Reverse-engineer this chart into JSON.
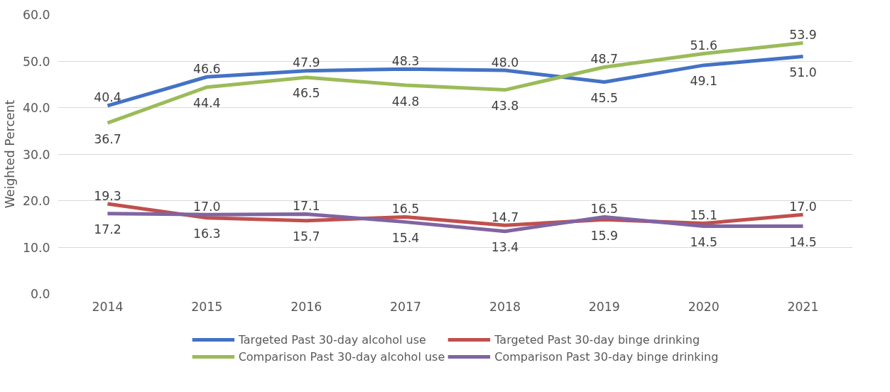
{
  "chart_data": {
    "type": "line",
    "ylabel": "Weighted Percent",
    "categories": [
      "2014",
      "2015",
      "2016",
      "2017",
      "2018",
      "2019",
      "2020",
      "2021"
    ],
    "series": [
      {
        "name": "Targeted Past 30-day alcohol use",
        "color": "#4472c4",
        "values": [
          40.4,
          46.6,
          47.9,
          48.3,
          48.0,
          45.5,
          49.1,
          51.0
        ],
        "value_labels": [
          "40.4",
          "46.6",
          "47.9",
          "48.3",
          "48.0",
          "45.5",
          "49.1",
          "51.0"
        ]
      },
      {
        "name": "Targeted Past 30-day binge drinking",
        "color": "#c0504d",
        "values": [
          19.3,
          16.3,
          15.7,
          16.5,
          14.7,
          15.9,
          15.1,
          17.0
        ],
        "value_labels": [
          "19.3",
          "16.3",
          "15.7",
          "16.5",
          "14.7",
          "15.9",
          "15.1",
          "17.0"
        ]
      },
      {
        "name": "Comparison Past 30-day alcohol use",
        "color": "#9bbb59",
        "values": [
          36.7,
          44.4,
          46.5,
          44.8,
          43.8,
          48.7,
          51.6,
          53.9
        ],
        "value_labels": [
          "36.7",
          "44.4",
          "46.5",
          "44.8",
          "43.8",
          "48.7",
          "51.6",
          "53.9"
        ]
      },
      {
        "name": "Comparison Past 30-day binge drinking",
        "color": "#8064a2",
        "values": [
          17.2,
          17.0,
          17.1,
          15.4,
          13.4,
          16.5,
          14.5,
          14.5
        ],
        "value_labels": [
          "17.2",
          "17.0",
          "17.1",
          "15.4",
          "13.4",
          "16.5",
          "14.5",
          "14.5"
        ]
      }
    ],
    "ylim": [
      0,
      60
    ],
    "yticks": [
      {
        "value": 0,
        "label": "0.0"
      },
      {
        "value": 10,
        "label": "10.0"
      },
      {
        "value": 20,
        "label": "20.0"
      },
      {
        "value": 30,
        "label": "30.0"
      },
      {
        "value": 40,
        "label": "40.0"
      },
      {
        "value": 50,
        "label": "50.0"
      },
      {
        "value": 60,
        "label": "60.0"
      }
    ],
    "grid": "y",
    "legend": "bottom",
    "marker": "none",
    "line_style": "solid"
  }
}
